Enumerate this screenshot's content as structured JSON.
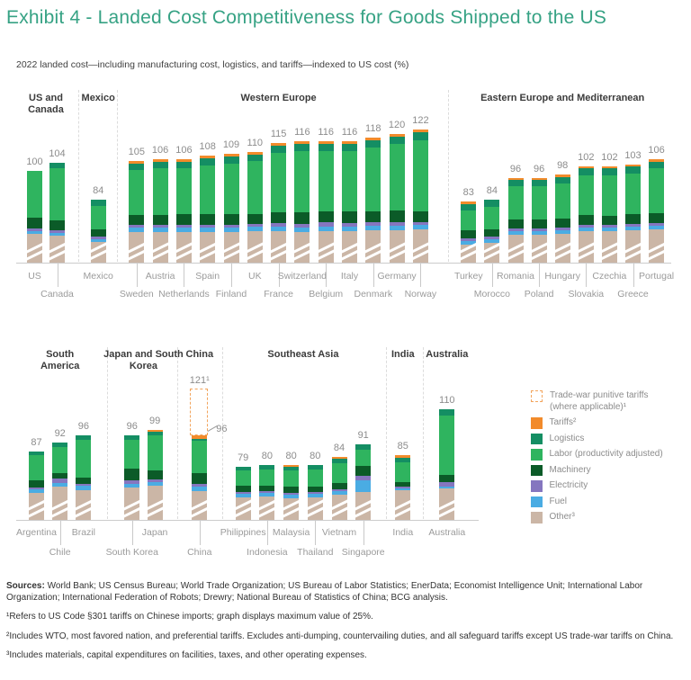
{
  "title": "Exhibit 4 - Landed Cost Competitiveness for Goods Shipped to the US",
  "subtitle": "2022 landed cost—including manufacturing cost, logistics, and tariffs—indexed to US cost (%)",
  "colors": {
    "title": "#36A284",
    "tariffs": "#F28B2B",
    "logistics": "#148E63",
    "labor": "#2FB45F",
    "machinery": "#0B5B28",
    "electricity": "#8576BF",
    "fuel": "#4AACE3",
    "other": "#CBB6A6",
    "tradewar_border": "#F2A45C",
    "axis": "#cccccc",
    "value_label": "#8c8c8c",
    "country_label": "#9b9b9b",
    "header_text": "#3b3b3b"
  },
  "legend": {
    "tradewar_label_line1": "Trade-war punitive tariffs",
    "tradewar_label_line2": "(where applicable)¹",
    "items": [
      {
        "key": "tariffs",
        "label": "Tariffs²"
      },
      {
        "key": "logistics",
        "label": "Logistics"
      },
      {
        "key": "labor",
        "label": "Labor (productivity adjusted)"
      },
      {
        "key": "machinery",
        "label": "Machinery"
      },
      {
        "key": "electricity",
        "label": "Electricity"
      },
      {
        "key": "fuel",
        "label": "Fuel"
      },
      {
        "key": "other",
        "label": "Other³"
      }
    ]
  },
  "chart_data": [
    {
      "id": "top",
      "type": "bar",
      "stacked": true,
      "axis_break": true,
      "unit": "landed cost indexed to US = 100",
      "segment_order_bottom_to_top": [
        "other",
        "fuel",
        "electricity",
        "machinery",
        "labor",
        "logistics",
        "tariffs"
      ],
      "groups": [
        {
          "label": "US and Canada",
          "bars": [
            {
              "name": "US",
              "total": 100,
              "segments": {
                "other": 65.5,
                "fuel": 1.5,
                "electricity": 1.5,
                "machinery": 6,
                "labor": 25.5,
                "logistics": 0,
                "tariffs": 0
              }
            },
            {
              "name": "Canada",
              "total": 104,
              "segments": {
                "other": 64.5,
                "fuel": 1.5,
                "electricity": 1.5,
                "machinery": 5.5,
                "labor": 28,
                "logistics": 3,
                "tariffs": 0
              }
            }
          ]
        },
        {
          "label": "Mexico",
          "bars": [
            {
              "name": "Mexico",
              "total": 84,
              "segments": {
                "other": 61,
                "fuel": 1.5,
                "electricity": 1.5,
                "machinery": 4,
                "labor": 12.5,
                "logistics": 3.5,
                "tariffs": 0
              }
            }
          ]
        },
        {
          "label": "Western Europe",
          "bars": [
            {
              "name": "Sweden",
              "total": 105,
              "segments": {
                "other": 66.5,
                "fuel": 2.5,
                "electricity": 1.5,
                "machinery": 5.5,
                "labor": 24,
                "logistics": 3.5,
                "tariffs": 1.5
              }
            },
            {
              "name": "Austria",
              "total": 106,
              "segments": {
                "other": 66.5,
                "fuel": 2.5,
                "electricity": 1.5,
                "machinery": 5.5,
                "labor": 25,
                "logistics": 3.5,
                "tariffs": 1.5
              }
            },
            {
              "name": "Netherlands",
              "total": 106,
              "segments": {
                "other": 66.5,
                "fuel": 2.5,
                "electricity": 1.5,
                "machinery": 6,
                "labor": 24.5,
                "logistics": 3.5,
                "tariffs": 1.5
              }
            },
            {
              "name": "Spain",
              "total": 108,
              "segments": {
                "other": 66.5,
                "fuel": 2.5,
                "electricity": 1.5,
                "machinery": 6,
                "labor": 26,
                "logistics": 4,
                "tariffs": 1.5
              }
            },
            {
              "name": "Finland",
              "total": 109,
              "segments": {
                "other": 66.5,
                "fuel": 2.5,
                "electricity": 1.5,
                "machinery": 6,
                "labor": 27,
                "logistics": 4,
                "tariffs": 1.5
              }
            },
            {
              "name": "UK",
              "total": 110,
              "segments": {
                "other": 67,
                "fuel": 2.5,
                "electricity": 1.5,
                "machinery": 5.5,
                "labor": 28.5,
                "logistics": 3.5,
                "tariffs": 1.5
              }
            },
            {
              "name": "France",
              "total": 115,
              "segments": {
                "other": 67,
                "fuel": 2.5,
                "electricity": 2,
                "machinery": 6,
                "labor": 32,
                "logistics": 4,
                "tariffs": 1.5
              }
            },
            {
              "name": "Switzerland",
              "total": 116,
              "segments": {
                "other": 66.5,
                "fuel": 2.5,
                "electricity": 2,
                "machinery": 6.5,
                "labor": 33,
                "logistics": 4,
                "tariffs": 1.5
              }
            },
            {
              "name": "Belgium",
              "total": 116,
              "segments": {
                "other": 67,
                "fuel": 2.5,
                "electricity": 2.5,
                "machinery": 6,
                "labor": 32.5,
                "logistics": 4,
                "tariffs": 1.5
              }
            },
            {
              "name": "Italy",
              "total": 116,
              "segments": {
                "other": 67,
                "fuel": 2.5,
                "electricity": 2,
                "machinery": 6.5,
                "labor": 32.5,
                "logistics": 4,
                "tariffs": 1.5
              }
            },
            {
              "name": "Denmark",
              "total": 118,
              "segments": {
                "other": 67.5,
                "fuel": 2.5,
                "electricity": 2,
                "machinery": 6,
                "labor": 34.5,
                "logistics": 4,
                "tariffs": 1.5
              }
            },
            {
              "name": "Germany",
              "total": 120,
              "segments": {
                "other": 67.5,
                "fuel": 2.5,
                "electricity": 2,
                "machinery": 6.5,
                "labor": 36,
                "logistics": 4,
                "tariffs": 1.5
              }
            },
            {
              "name": "Norway",
              "total": 122,
              "segments": {
                "other": 68,
                "fuel": 2.5,
                "electricity": 1.5,
                "machinery": 6,
                "labor": 38.5,
                "logistics": 4,
                "tariffs": 1.5
              }
            }
          ]
        },
        {
          "label": "Eastern Europe and Mediterranean",
          "bars": [
            {
              "name": "Turkey",
              "total": 83,
              "segments": {
                "other": 59.5,
                "fuel": 2,
                "electricity": 1.5,
                "machinery": 4.5,
                "labor": 11,
                "logistics": 3,
                "tariffs": 1.5
              }
            },
            {
              "name": "Morocco",
              "total": 84,
              "segments": {
                "other": 60.5,
                "fuel": 2,
                "electricity": 1.5,
                "machinery": 4,
                "labor": 12,
                "logistics": 4,
                "tariffs": 0
              }
            },
            {
              "name": "Romania",
              "total": 96,
              "segments": {
                "other": 65,
                "fuel": 2,
                "electricity": 1.5,
                "machinery": 5,
                "labor": 18,
                "logistics": 3.5,
                "tariffs": 1
              }
            },
            {
              "name": "Poland",
              "total": 96,
              "segments": {
                "other": 65,
                "fuel": 2,
                "electricity": 1.5,
                "machinery": 5,
                "labor": 18,
                "logistics": 3.5,
                "tariffs": 1
              }
            },
            {
              "name": "Hungary",
              "total": 98,
              "segments": {
                "other": 65.5,
                "fuel": 2,
                "electricity": 1.5,
                "machinery": 5,
                "labor": 19,
                "logistics": 3.5,
                "tariffs": 1.5
              }
            },
            {
              "name": "Slovakia",
              "total": 102,
              "segments": {
                "other": 67,
                "fuel": 2,
                "electricity": 1.5,
                "machinery": 5.5,
                "labor": 21.5,
                "logistics": 3.5,
                "tariffs": 1
              }
            },
            {
              "name": "Czechia",
              "total": 102,
              "segments": {
                "other": 67,
                "fuel": 2,
                "electricity": 1.5,
                "machinery": 5,
                "labor": 22,
                "logistics": 3.5,
                "tariffs": 1
              }
            },
            {
              "name": "Greece",
              "total": 103,
              "segments": {
                "other": 67.5,
                "fuel": 2,
                "electricity": 1.5,
                "machinery": 5.5,
                "labor": 22,
                "logistics": 3.5,
                "tariffs": 1
              }
            },
            {
              "name": "Portugal",
              "total": 106,
              "segments": {
                "other": 68,
                "fuel": 2,
                "electricity": 1.5,
                "machinery": 5.5,
                "labor": 24,
                "logistics": 3.5,
                "tariffs": 1.5
              }
            }
          ]
        }
      ]
    },
    {
      "id": "bottom",
      "type": "bar",
      "stacked": true,
      "axis_break": true,
      "unit": "landed cost indexed to US = 100",
      "segment_order_bottom_to_top": [
        "other",
        "fuel",
        "electricity",
        "machinery",
        "labor",
        "logistics",
        "tariffs"
      ],
      "groups": [
        {
          "label": "South America",
          "bars": [
            {
              "name": "Argentina",
              "total": 87,
              "segments": {
                "other": 64.5,
                "fuel": 2,
                "electricity": 1,
                "machinery": 4,
                "labor": 13.5,
                "logistics": 2,
                "tariffs": 0
              }
            },
            {
              "name": "Chile",
              "total": 92,
              "segments": {
                "other": 68,
                "fuel": 2,
                "electricity": 2.5,
                "machinery": 3,
                "labor": 14,
                "logistics": 2.5,
                "tariffs": 0
              }
            },
            {
              "name": "Brazil",
              "total": 96,
              "segments": {
                "other": 66,
                "fuel": 2.5,
                "electricity": 1,
                "machinery": 3.5,
                "labor": 20.5,
                "logistics": 2.5,
                "tariffs": 0
              }
            }
          ]
        },
        {
          "label": "Japan and South Korea",
          "bars": [
            {
              "name": "South Korea",
              "total": 96,
              "segments": {
                "other": 67.5,
                "fuel": 2,
                "electricity": 2,
                "machinery": 6.5,
                "labor": 15.5,
                "logistics": 2.5,
                "tariffs": 0
              }
            },
            {
              "name": "Japan",
              "total": 99,
              "segments": {
                "other": 68.5,
                "fuel": 2,
                "electricity": 1.5,
                "machinery": 5,
                "labor": 19,
                "logistics": 2,
                "tariffs": 1
              }
            }
          ]
        },
        {
          "label": "China",
          "bars": [
            {
              "name": "China",
              "total": 96,
              "dashed_max": 121,
              "dashed_max_label": "121¹",
              "segments": {
                "other": 65.5,
                "fuel": 2.5,
                "electricity": 1.5,
                "machinery": 6,
                "labor": 17.5,
                "logistics": 1,
                "tariffs": 2
              }
            }
          ]
        },
        {
          "label": "Southeast Asia",
          "bars": [
            {
              "name": "Philippines",
              "total": 79,
              "segments": {
                "other": 62,
                "fuel": 2,
                "electricity": 1,
                "machinery": 3.5,
                "labor": 8.5,
                "logistics": 2,
                "tariffs": 0
              }
            },
            {
              "name": "Indonesia",
              "total": 80,
              "segments": {
                "other": 62.5,
                "fuel": 2,
                "electricity": 1,
                "machinery": 3,
                "labor": 9,
                "logistics": 2.5,
                "tariffs": 0
              }
            },
            {
              "name": "Malaysia",
              "total": 80,
              "segments": {
                "other": 61.5,
                "fuel": 2,
                "electricity": 1,
                "machinery": 3.5,
                "labor": 9,
                "logistics": 2,
                "tariffs": 1
              }
            },
            {
              "name": "Thailand",
              "total": 80,
              "segments": {
                "other": 62,
                "fuel": 2,
                "electricity": 1,
                "machinery": 3,
                "labor": 9.5,
                "logistics": 2.5,
                "tariffs": 0
              }
            },
            {
              "name": "Vietnam",
              "total": 84,
              "segments": {
                "other": 63.5,
                "fuel": 2,
                "electricity": 1,
                "machinery": 3.5,
                "labor": 10.5,
                "logistics": 2.5,
                "tariffs": 1
              }
            },
            {
              "name": "Singapore",
              "total": 91,
              "segments": {
                "other": 65,
                "fuel": 6.5,
                "electricity": 2.5,
                "machinery": 5.5,
                "labor": 8.5,
                "logistics": 3,
                "tariffs": 0
              }
            }
          ]
        },
        {
          "label": "India",
          "bars": [
            {
              "name": "India",
              "total": 85,
              "segments": {
                "other": 66,
                "fuel": 1,
                "electricity": 1,
                "machinery": 2.5,
                "labor": 10.5,
                "logistics": 2.5,
                "tariffs": 1.5
              }
            }
          ]
        },
        {
          "label": "Australia",
          "bars": [
            {
              "name": "Australia",
              "total": 110,
              "segments": {
                "other": 67,
                "fuel": 1,
                "electricity": 2.5,
                "machinery": 4,
                "labor": 32,
                "logistics": 3.5,
                "tariffs": 0
              }
            }
          ]
        }
      ]
    }
  ],
  "footer": {
    "sources_label": "Sources:",
    "sources_text": "World Bank; US Census Bureau; World Trade Organization; US Bureau of Labor Statistics; EnerData; Economist Intelligence Unit; International Labor Organization; International Federation of Robots; Drewry; National Bureau of Statistics of China; BCG analysis.",
    "footnotes": [
      "¹Refers to US Code §301 tariffs on Chinese imports; graph displays maximum value of 25%.",
      "²Includes WTO, most favored nation, and preferential tariffs. Excludes anti-dumping, countervailing duties, and all safeguard tariffs except US trade-war tariffs on China.",
      "³Includes materials, capital expenditures on facilities, taxes, and other operating expenses."
    ]
  }
}
